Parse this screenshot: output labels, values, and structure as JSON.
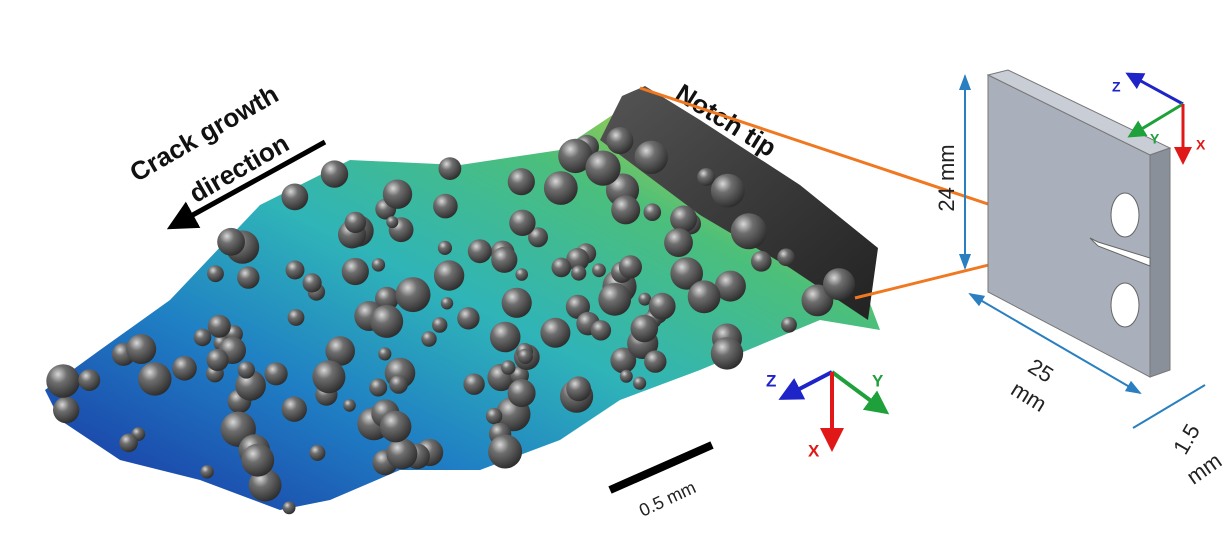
{
  "rendering": {
    "crack_direction": [
      "Crack growth",
      "direction"
    ],
    "notch_label": "Notch tip",
    "scale_bar": "0.5 mm",
    "axes": {
      "z": "Z",
      "y": "Y",
      "x": "X"
    }
  },
  "specimen": {
    "height": "24 mm",
    "width": [
      "25",
      "mm"
    ],
    "thickness": [
      "1.5",
      "mm"
    ],
    "axes": {
      "z": "Z",
      "y": "Y",
      "x": "X"
    }
  }
}
